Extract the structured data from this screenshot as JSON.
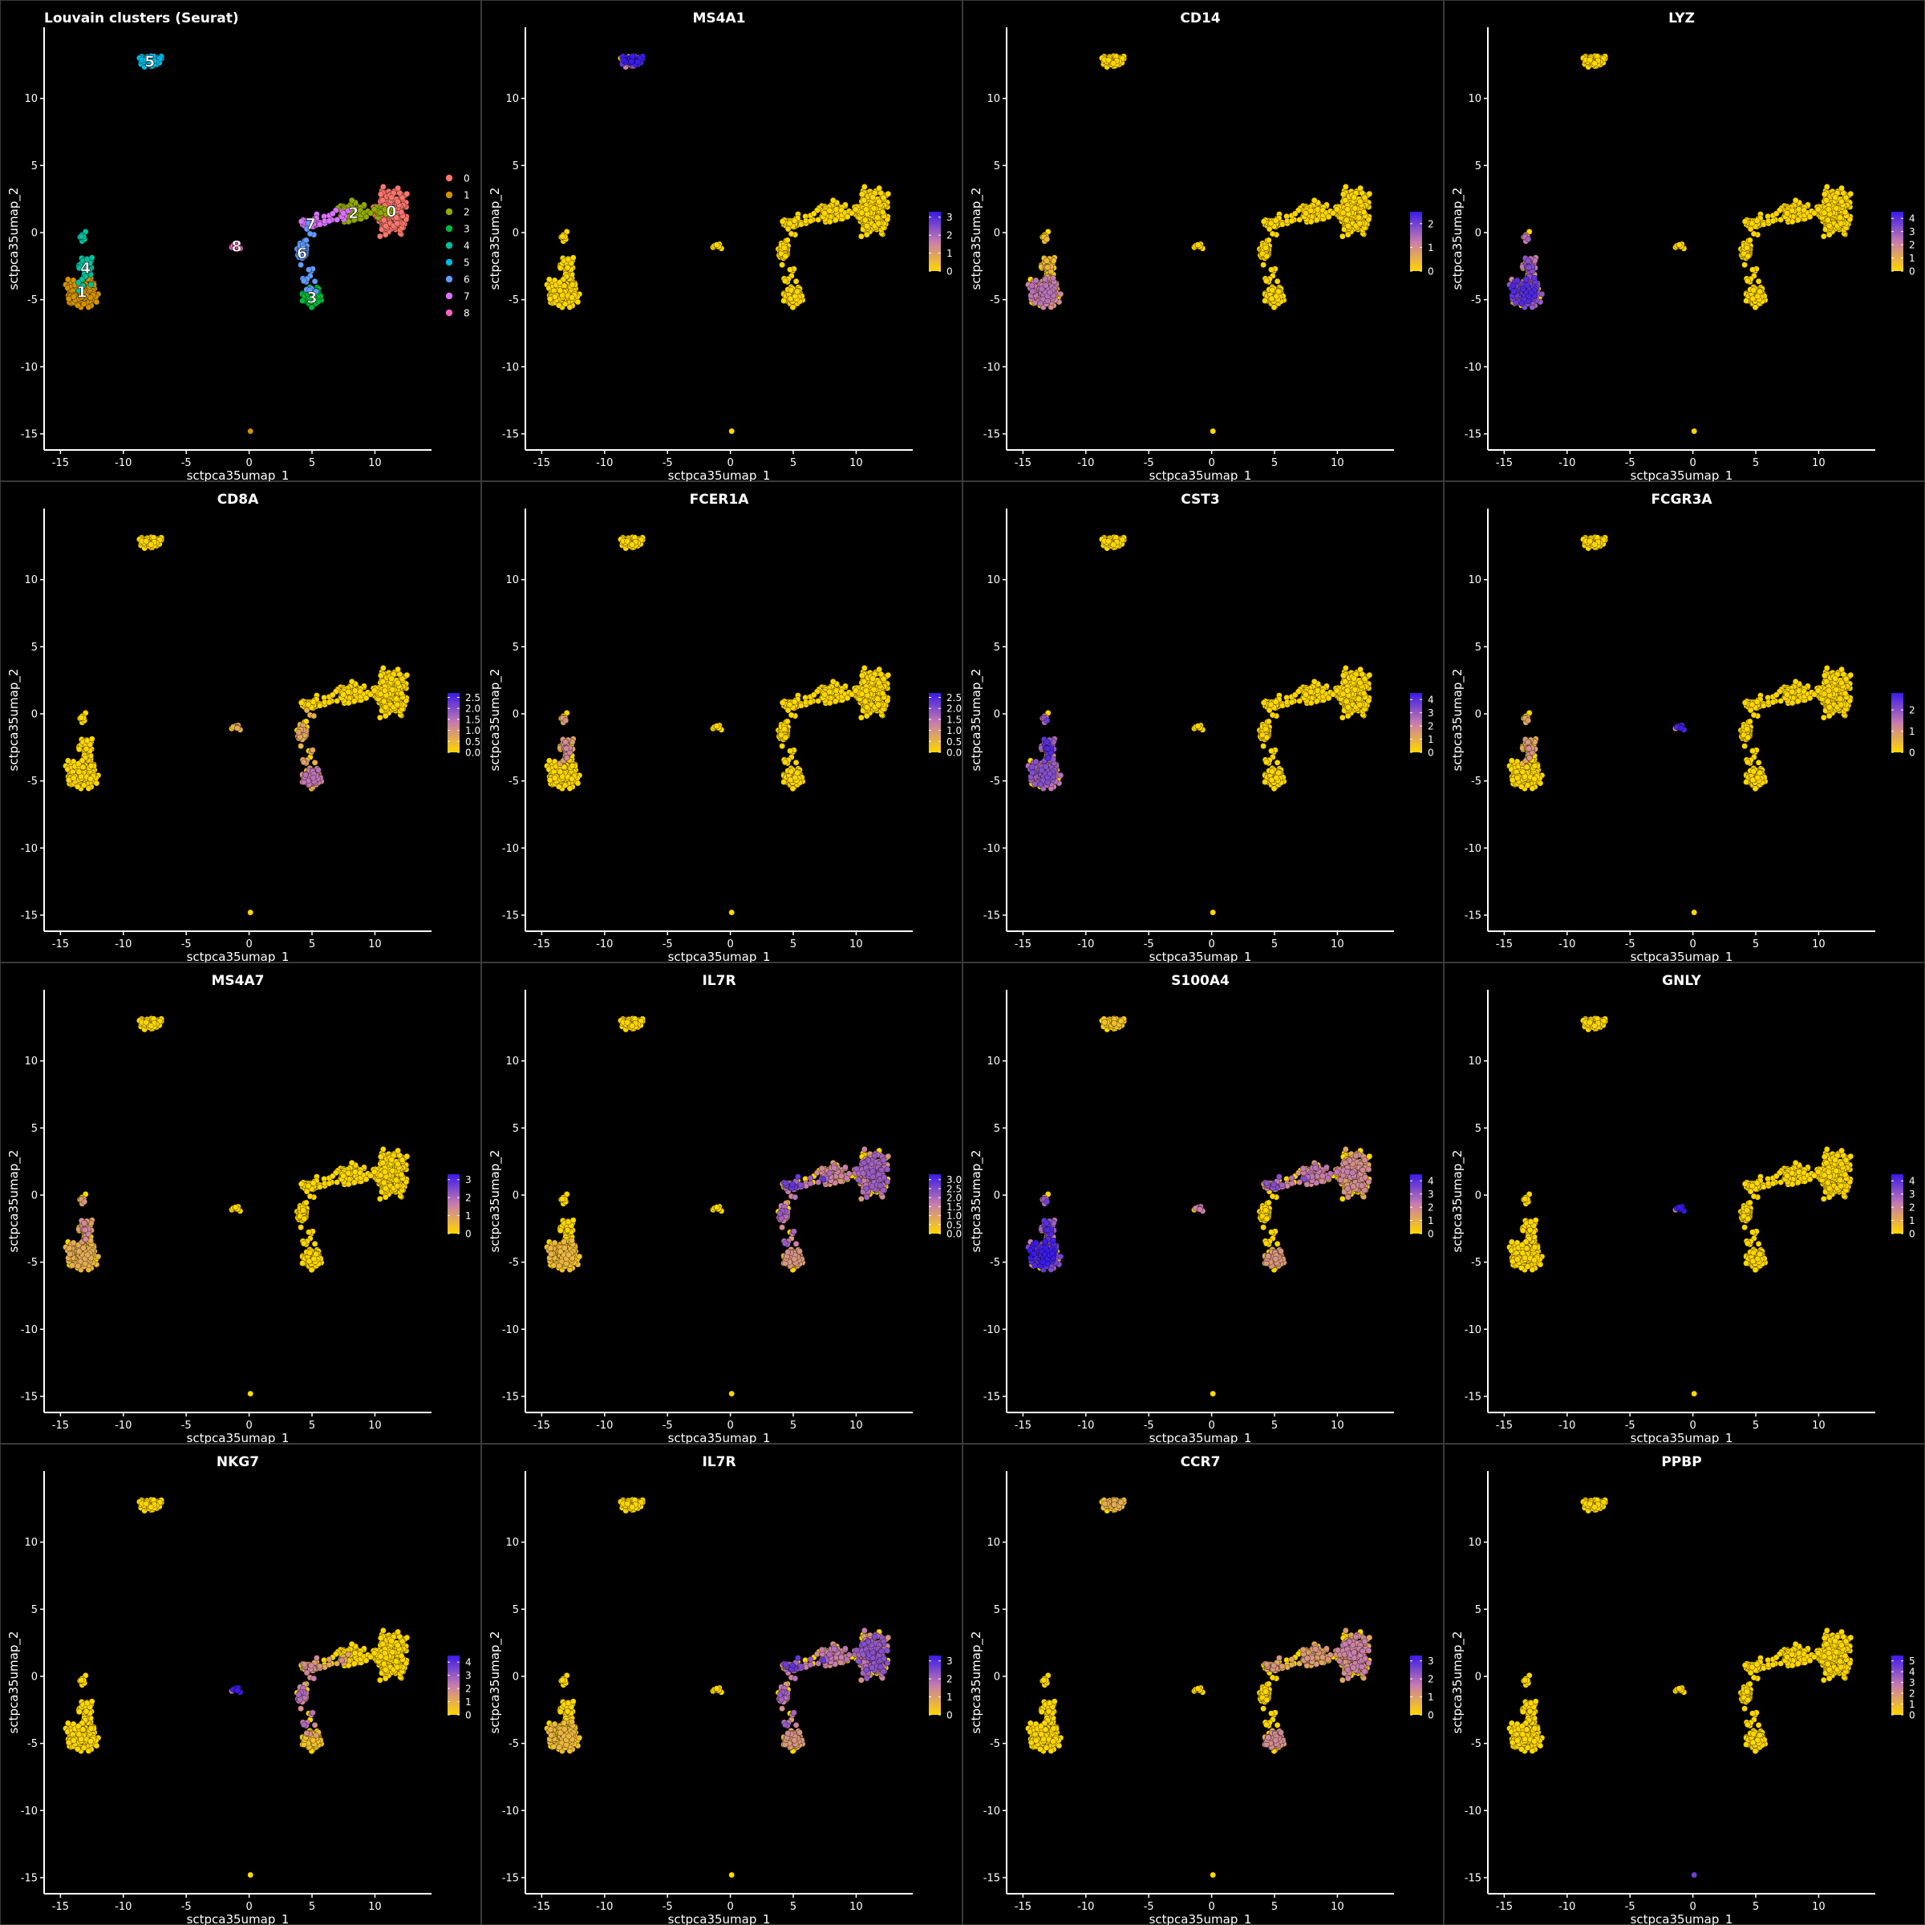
{
  "chart_data": {
    "type": "scatter",
    "layout": {
      "rows": 4,
      "cols": 4
    },
    "xlabel": "sctpca35umap_1",
    "ylabel": "sctpca35umap_2",
    "xticks": [
      -15,
      -10,
      -5,
      0,
      5,
      10
    ],
    "yticks": [
      -15,
      -10,
      -5,
      0,
      5,
      10
    ],
    "xlim": [
      -16.3,
      14.5
    ],
    "ylim": [
      -16.2,
      15.3
    ],
    "expression_colors": {
      "low": "#FFD700",
      "mid": "#C77CB0",
      "high": "#3A1AE8"
    },
    "clusters": [
      {
        "id": "0",
        "name": "0",
        "color": "#F8766D",
        "center": [
          11.3,
          1.6
        ],
        "spread": [
          1.1,
          1.5
        ]
      },
      {
        "id": "1",
        "name": "1",
        "color": "#D39200",
        "center": [
          -13.3,
          -4.4
        ],
        "spread": [
          1.0,
          0.9
        ]
      },
      {
        "id": "2",
        "name": "2",
        "color": "#93AA00",
        "center": [
          8.3,
          1.5
        ],
        "spread": [
          1.0,
          0.7
        ]
      },
      {
        "id": "3",
        "name": "3",
        "color": "#00BA38",
        "center": [
          5.0,
          -4.8
        ],
        "spread": [
          0.6,
          0.6
        ]
      },
      {
        "id": "4",
        "name": "4",
        "color": "#00C19F",
        "center": [
          -13.0,
          -2.6
        ],
        "spread": [
          0.5,
          0.7
        ]
      },
      {
        "id": "5",
        "name": "5",
        "color": "#00B9E3",
        "center": [
          -7.9,
          12.8
        ],
        "spread": [
          0.8,
          0.4
        ]
      },
      {
        "id": "6",
        "name": "6",
        "color": "#619CFF",
        "center": [
          4.2,
          -1.5
        ],
        "spread": [
          0.4,
          0.5
        ]
      },
      {
        "id": "7",
        "name": "7",
        "color": "#DB72FB",
        "center": [
          4.9,
          0.7
        ],
        "spread": [
          0.6,
          0.3
        ]
      },
      {
        "id": "8",
        "name": "8",
        "color": "#FF61C3",
        "center": [
          -1.0,
          -1.0
        ],
        "spread": [
          0.3,
          0.15
        ]
      }
    ],
    "panels": [
      {
        "kind": "cluster",
        "title": "Louvain clusters (Seurat)",
        "legend": [
          "0",
          "1",
          "2",
          "3",
          "4",
          "5",
          "6",
          "7",
          "8"
        ]
      },
      {
        "kind": "gene",
        "title": "MS4A1",
        "scale_ticks": [
          "0",
          "1",
          "2",
          "3"
        ],
        "max": 3.3,
        "expr": {
          "5": 1.0
        }
      },
      {
        "kind": "gene",
        "title": "CD14",
        "scale_ticks": [
          "0",
          "1",
          "2"
        ],
        "max": 2.5,
        "expr": {
          "1": 0.45,
          "4": 0.15
        }
      },
      {
        "kind": "gene",
        "title": "LYZ",
        "scale_ticks": [
          "0",
          "1",
          "2",
          "3",
          "4"
        ],
        "max": 4.5,
        "expr": {
          "1": 0.75,
          "4": 0.6
        }
      },
      {
        "kind": "gene",
        "title": "CD8A",
        "scale_ticks": [
          "0.0",
          "0.5",
          "1.0",
          "1.5",
          "2.0",
          "2.5"
        ],
        "max": 2.7,
        "expr": {
          "3": 0.45,
          "6": 0.25,
          "8": 0.2
        }
      },
      {
        "kind": "gene",
        "title": "FCER1A",
        "scale_ticks": [
          "0.0",
          "0.5",
          "1.0",
          "1.5",
          "2.0",
          "2.5"
        ],
        "max": 2.7,
        "expr": {
          "4": 0.35
        }
      },
      {
        "kind": "gene",
        "title": "CST3",
        "scale_ticks": [
          "0",
          "1",
          "2",
          "3",
          "4"
        ],
        "max": 4.5,
        "expr": {
          "1": 0.6,
          "4": 0.75
        }
      },
      {
        "kind": "gene",
        "title": "FCGR3A",
        "scale_ticks": [
          "0",
          "1",
          "2"
        ],
        "max": 2.8,
        "expr": {
          "4": 0.3,
          "8": 0.8
        }
      },
      {
        "kind": "gene",
        "title": "MS4A7",
        "scale_ticks": [
          "0",
          "1",
          "2",
          "3"
        ],
        "max": 3.3,
        "expr": {
          "1": 0.2,
          "4": 0.35
        }
      },
      {
        "kind": "gene",
        "title": "IL7R",
        "scale_ticks": [
          "0.0",
          "0.5",
          "1.0",
          "1.5",
          "2.0",
          "2.5",
          "3.0"
        ],
        "max": 3.3,
        "expr": {
          "0": 0.55,
          "2": 0.4,
          "7": 0.7,
          "3": 0.3,
          "6": 0.55,
          "1": 0.15
        }
      },
      {
        "kind": "gene",
        "title": "S100A4",
        "scale_ticks": [
          "0",
          "1",
          "2",
          "3",
          "4"
        ],
        "max": 4.5,
        "expr": {
          "1": 0.85,
          "4": 0.75,
          "0": 0.35,
          "2": 0.45,
          "7": 0.6,
          "3": 0.3,
          "5": 0.1,
          "8": 0.4
        }
      },
      {
        "kind": "gene",
        "title": "GNLY",
        "scale_ticks": [
          "0",
          "1",
          "2",
          "3",
          "4"
        ],
        "max": 4.5,
        "expr": {
          "8": 0.95
        }
      },
      {
        "kind": "gene",
        "title": "NKG7",
        "scale_ticks": [
          "0",
          "1",
          "2",
          "3",
          "4"
        ],
        "max": 4.5,
        "expr": {
          "8": 0.9,
          "7": 0.35,
          "6": 0.5,
          "3": 0.1
        }
      },
      {
        "kind": "gene",
        "title": "IL7R",
        "scale_ticks": [
          "0",
          "1",
          "2",
          "3"
        ],
        "max": 3.3,
        "expr": {
          "0": 0.6,
          "2": 0.45,
          "7": 0.7,
          "3": 0.3,
          "6": 0.55,
          "1": 0.15
        }
      },
      {
        "kind": "gene",
        "title": "CCR7",
        "scale_ticks": [
          "0",
          "1",
          "2",
          "3"
        ],
        "max": 3.3,
        "expr": {
          "0": 0.4,
          "2": 0.3,
          "3": 0.35,
          "5": 0.2,
          "7": 0.3
        }
      },
      {
        "kind": "gene",
        "title": "PPBP",
        "scale_ticks": [
          "0",
          "1",
          "2",
          "3",
          "4",
          "5"
        ],
        "max": 5.5,
        "expr": {
          "stray": 1.0
        }
      }
    ]
  }
}
